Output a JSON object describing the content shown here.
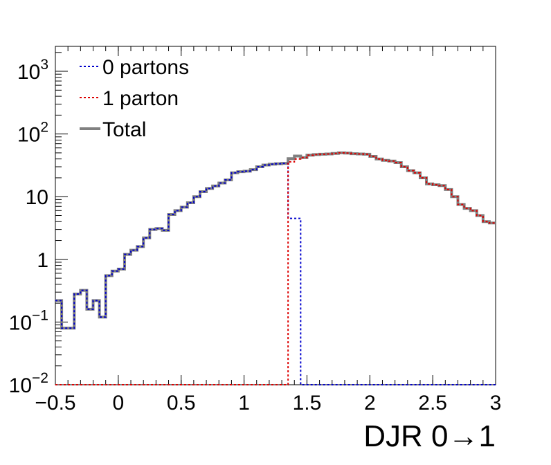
{
  "chart_data": {
    "type": "line",
    "step": true,
    "x_log": false,
    "y_log": true,
    "xlim": [
      -0.5,
      3.0
    ],
    "ylim": [
      0.01,
      2500
    ],
    "xlabel": "DJR 0→1",
    "ylabel": "",
    "bin_width": 0.05,
    "x_start": -0.5,
    "x_ticks": [
      {
        "value": -0.5,
        "label": "−0.5"
      },
      {
        "value": 0,
        "label": "0"
      },
      {
        "value": 0.5,
        "label": "0.5"
      },
      {
        "value": 1,
        "label": "1"
      },
      {
        "value": 1.5,
        "label": "1.5"
      },
      {
        "value": 2,
        "label": "2"
      },
      {
        "value": 2.5,
        "label": "2.5"
      },
      {
        "value": 3,
        "label": "3"
      }
    ],
    "y_ticks": [
      {
        "value": 0.01,
        "base": "10",
        "exp": "−2",
        "plain": ""
      },
      {
        "value": 0.1,
        "base": "10",
        "exp": "−1",
        "plain": ""
      },
      {
        "value": 1,
        "base": "",
        "exp": "",
        "plain": "1"
      },
      {
        "value": 10,
        "base": "",
        "exp": "",
        "plain": "10"
      },
      {
        "value": 100,
        "base": "10",
        "exp": "2",
        "plain": ""
      },
      {
        "value": 1000,
        "base": "10",
        "exp": "3",
        "plain": ""
      }
    ],
    "legend": {
      "placement": "top-left",
      "entries": [
        {
          "label": "0 partons",
          "color": "#0000cc",
          "style": "dotted"
        },
        {
          "label": "1 parton",
          "color": "#dd0000",
          "style": "dotted"
        },
        {
          "label": "Total",
          "color": "#808080",
          "style": "solid"
        }
      ]
    },
    "series": [
      {
        "name": "0 partons",
        "color": "#0000cc",
        "style": "dotted",
        "values": [
          0.22,
          0.08,
          0.08,
          0.28,
          0.32,
          0.16,
          0.22,
          0.12,
          0.55,
          0.65,
          0.7,
          1.2,
          1.4,
          1.6,
          2.2,
          3.0,
          3.1,
          2.9,
          5.2,
          6.0,
          6.8,
          8.0,
          10.0,
          12.0,
          13.5,
          14.8,
          16.5,
          18.5,
          24.0,
          25.0,
          25.5,
          27.0,
          30.0,
          32.0,
          33.0,
          33.5,
          34.0,
          4.5,
          4.5,
          0.0,
          0,
          0,
          0,
          0,
          0,
          0,
          0,
          0,
          0,
          0,
          0,
          0,
          0,
          0,
          0,
          0,
          0,
          0,
          0,
          0,
          0,
          0,
          0,
          0,
          0,
          0,
          0,
          0,
          0,
          0
        ]
      },
      {
        "name": "1 parton",
        "color": "#dd0000",
        "style": "dotted",
        "values": [
          0,
          0,
          0,
          0,
          0,
          0,
          0,
          0,
          0,
          0,
          0,
          0,
          0,
          0,
          0,
          0,
          0,
          0,
          0,
          0,
          0,
          0,
          0,
          0,
          0,
          0,
          0,
          0,
          0,
          0,
          0,
          0,
          0,
          0,
          0,
          0,
          0,
          36.0,
          40.0,
          42.0,
          46.0,
          47.0,
          47.5,
          48.0,
          49.0,
          50.0,
          49.5,
          48.5,
          48.0,
          47.5,
          44.0,
          40.0,
          38.0,
          37.0,
          35.0,
          30.0,
          26.0,
          24.0,
          20.0,
          16.0,
          15.5,
          15.0,
          13.0,
          10.0,
          7.5,
          6.5,
          6.0,
          5.0,
          4.0,
          3.8
        ]
      },
      {
        "name": "Total",
        "color": "#808080",
        "style": "solid",
        "values": [
          0.22,
          0.08,
          0.08,
          0.28,
          0.32,
          0.16,
          0.22,
          0.12,
          0.55,
          0.65,
          0.7,
          1.2,
          1.4,
          1.6,
          2.2,
          3.0,
          3.1,
          2.9,
          5.2,
          6.0,
          6.8,
          8.0,
          10.0,
          12.0,
          13.5,
          14.8,
          16.5,
          18.5,
          24.0,
          25.0,
          25.5,
          27.0,
          30.0,
          32.0,
          33.0,
          33.5,
          34.0,
          40.5,
          44.5,
          42.0,
          46.0,
          47.0,
          47.5,
          48.0,
          49.0,
          50.0,
          49.5,
          48.5,
          48.0,
          47.5,
          44.0,
          40.0,
          38.0,
          37.0,
          35.0,
          30.0,
          26.0,
          24.0,
          20.0,
          16.0,
          15.5,
          15.0,
          13.0,
          10.0,
          7.5,
          6.5,
          6.0,
          5.0,
          4.0,
          3.8
        ]
      }
    ]
  }
}
